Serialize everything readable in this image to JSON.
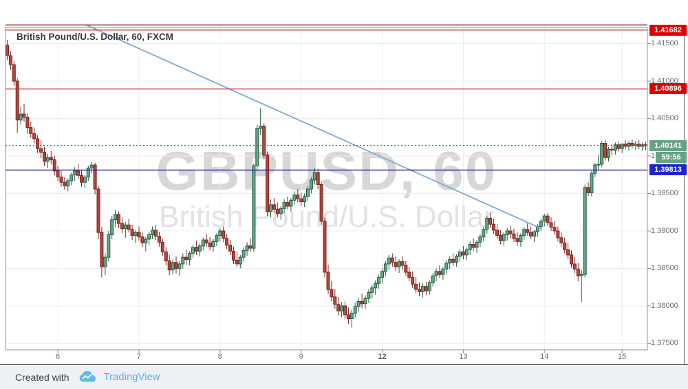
{
  "header": {
    "title": "British Pound/U.S. Dollar, 60, FXCM"
  },
  "watermark": {
    "line1": "GBPUSD, 60",
    "line2": "British Pound/U.S. Dollar"
  },
  "footer": {
    "created_with": "Created with",
    "brand": "TradingView"
  },
  "colors": {
    "up_fill": "#68a487",
    "up_border": "#1f5f42",
    "down_fill": "#b2473e",
    "down_border": "#7c241e",
    "grid": "#ececec",
    "frame": "#8f8f8f",
    "axis_edge": "#6b6b6b",
    "tick": "#8a8a8a",
    "trendline": "#7fa7d8",
    "upper_red_line": "#8c1f1f",
    "red_line": "#c03030",
    "red_badge": "#e00000",
    "current_line": "#3e7d63",
    "current_badge": "#66a284",
    "support_line": "#26268f",
    "support_badge": "#2023cc"
  },
  "chart_data": {
    "type": "candlestick",
    "title": "British Pound/U.S. Dollar",
    "symbol": "GBPUSD",
    "interval": "60",
    "exchange": "FXCM",
    "last_price": "1.40141",
    "countdown": "59:56",
    "y_axis": {
      "range_top": 1.41716,
      "range_bottom": 1.37413,
      "ticks": [
        {
          "label": "1.41500",
          "value": 1.415
        },
        {
          "label": "1.41000",
          "value": 1.41
        },
        {
          "label": "1.40500",
          "value": 1.405
        },
        {
          "label": "1.40000",
          "value": 1.4
        },
        {
          "label": "1.39500",
          "value": 1.395
        },
        {
          "label": "1.39000",
          "value": 1.39
        },
        {
          "label": "1.38500",
          "value": 1.385
        },
        {
          "label": "1.38000",
          "value": 1.38
        },
        {
          "label": "1.37500",
          "value": 1.375
        }
      ]
    },
    "x_axis": {
      "ticks": [
        {
          "label": "6",
          "index": 15,
          "bold": false
        },
        {
          "label": "7",
          "index": 39,
          "bold": false
        },
        {
          "label": "8",
          "index": 63,
          "bold": false
        },
        {
          "label": "9",
          "index": 87,
          "bold": false
        },
        {
          "label": "12",
          "index": 111,
          "bold": true
        },
        {
          "label": "13",
          "index": 135,
          "bold": false
        },
        {
          "label": "14",
          "index": 159,
          "bold": false
        },
        {
          "label": "15",
          "index": 182,
          "bold": false
        }
      ]
    },
    "levels": [
      {
        "price": 1.4175,
        "label": null,
        "style": "solid",
        "line_color": "#8c1f1f",
        "badge_color": null
      },
      {
        "price": 1.41682,
        "label": "1.41682",
        "style": "solid",
        "line_color": "#c03030",
        "badge_color": "#e00000"
      },
      {
        "price": 1.40896,
        "label": "1.40896",
        "style": "solid",
        "line_color": "#c03030",
        "badge_color": "#e00000"
      },
      {
        "price": 1.40141,
        "label": "1.40141",
        "style": "dotted",
        "line_color": "#3e7d63",
        "badge_color": "#66a284",
        "current": true
      },
      {
        "price": 1.39813,
        "label": "1.39813",
        "style": "solid",
        "line_color": "#26268f",
        "badge_color": "#2023cc"
      }
    ],
    "trendline": {
      "from_index": 23.4,
      "from_price": 1.4175,
      "to_index": 158.2,
      "to_price": 1.3903
    },
    "candles": [
      [
        1.4148,
        1.4155,
        1.4128,
        1.4134
      ],
      [
        1.4134,
        1.414,
        1.4115,
        1.4122
      ],
      [
        1.4122,
        1.4127,
        1.4094,
        1.41
      ],
      [
        1.41,
        1.4104,
        1.4031,
        1.4048
      ],
      [
        1.4048,
        1.4066,
        1.4042,
        1.4056
      ],
      [
        1.4056,
        1.407,
        1.4046,
        1.4052
      ],
      [
        1.4052,
        1.4057,
        1.403,
        1.4038
      ],
      [
        1.4038,
        1.4046,
        1.4024,
        1.403
      ],
      [
        1.403,
        1.4038,
        1.4017,
        1.4023
      ],
      [
        1.4023,
        1.4028,
        1.4004,
        1.401
      ],
      [
        1.401,
        1.4021,
        1.3997,
        1.4005
      ],
      [
        1.4005,
        1.4012,
        1.3987,
        1.3993
      ],
      [
        1.3993,
        1.4003,
        1.3984,
        1.3998
      ],
      [
        1.3998,
        1.4007,
        1.3989,
        1.3995
      ],
      [
        1.3995,
        1.4,
        1.3974,
        1.398
      ],
      [
        1.398,
        1.3987,
        1.3967,
        1.3972
      ],
      [
        1.3972,
        1.398,
        1.3959,
        1.3965
      ],
      [
        1.3965,
        1.3972,
        1.3955,
        1.396
      ],
      [
        1.396,
        1.397,
        1.3953,
        1.3967
      ],
      [
        1.3967,
        1.3978,
        1.3961,
        1.3975
      ],
      [
        1.3975,
        1.3985,
        1.3967,
        1.398
      ],
      [
        1.398,
        1.3989,
        1.3969,
        1.3974
      ],
      [
        1.3974,
        1.3981,
        1.3959,
        1.3965
      ],
      [
        1.3965,
        1.3975,
        1.3957,
        1.3972
      ],
      [
        1.3972,
        1.3987,
        1.3967,
        1.3984
      ],
      [
        1.3984,
        1.3992,
        1.3977,
        1.3988
      ],
      [
        1.3988,
        1.3991,
        1.3949,
        1.3956
      ],
      [
        1.3956,
        1.396,
        1.3889,
        1.3898
      ],
      [
        1.3898,
        1.3905,
        1.3838,
        1.3852
      ],
      [
        1.3852,
        1.387,
        1.3841,
        1.3865
      ],
      [
        1.3865,
        1.39,
        1.3859,
        1.3895
      ],
      [
        1.3895,
        1.392,
        1.3889,
        1.3915
      ],
      [
        1.3915,
        1.3928,
        1.3905,
        1.3922
      ],
      [
        1.3922,
        1.3926,
        1.3904,
        1.391
      ],
      [
        1.391,
        1.3918,
        1.3897,
        1.3903
      ],
      [
        1.3903,
        1.3912,
        1.3891,
        1.3908
      ],
      [
        1.3908,
        1.3916,
        1.3898,
        1.3902
      ],
      [
        1.3902,
        1.3908,
        1.3888,
        1.3894
      ],
      [
        1.3894,
        1.3901,
        1.3884,
        1.3898
      ],
      [
        1.3898,
        1.3906,
        1.3887,
        1.3892
      ],
      [
        1.3892,
        1.3898,
        1.3878,
        1.3884
      ],
      [
        1.3884,
        1.3892,
        1.3873,
        1.3889
      ],
      [
        1.3889,
        1.3899,
        1.3881,
        1.3895
      ],
      [
        1.3895,
        1.3906,
        1.3889,
        1.3901
      ],
      [
        1.3901,
        1.3908,
        1.3888,
        1.3893
      ],
      [
        1.3893,
        1.3899,
        1.3879,
        1.3885
      ],
      [
        1.3885,
        1.389,
        1.3867,
        1.3872
      ],
      [
        1.3872,
        1.3878,
        1.3854,
        1.386
      ],
      [
        1.386,
        1.3868,
        1.3841,
        1.3848
      ],
      [
        1.3848,
        1.3862,
        1.3842,
        1.3858
      ],
      [
        1.3858,
        1.3866,
        1.3843,
        1.385
      ],
      [
        1.385,
        1.386,
        1.384,
        1.3856
      ],
      [
        1.3856,
        1.387,
        1.385,
        1.3865
      ],
      [
        1.3865,
        1.3875,
        1.3855,
        1.3862
      ],
      [
        1.3862,
        1.3873,
        1.3854,
        1.387
      ],
      [
        1.387,
        1.3882,
        1.3864,
        1.3878
      ],
      [
        1.3878,
        1.3887,
        1.3868,
        1.3873
      ],
      [
        1.3873,
        1.3883,
        1.3866,
        1.388
      ],
      [
        1.388,
        1.3891,
        1.3874,
        1.3888
      ],
      [
        1.3888,
        1.3896,
        1.3879,
        1.3884
      ],
      [
        1.3884,
        1.3892,
        1.3874,
        1.3879
      ],
      [
        1.3879,
        1.3889,
        1.3872,
        1.3886
      ],
      [
        1.3886,
        1.3897,
        1.388,
        1.3894
      ],
      [
        1.3894,
        1.3904,
        1.3886,
        1.39
      ],
      [
        1.39,
        1.3906,
        1.3885,
        1.389
      ],
      [
        1.389,
        1.3896,
        1.3876,
        1.3881
      ],
      [
        1.3881,
        1.3888,
        1.3868,
        1.3873
      ],
      [
        1.3873,
        1.3879,
        1.3856,
        1.3861
      ],
      [
        1.3861,
        1.3872,
        1.3852,
        1.3856
      ],
      [
        1.3856,
        1.3868,
        1.385,
        1.3865
      ],
      [
        1.3865,
        1.3878,
        1.3859,
        1.3874
      ],
      [
        1.3874,
        1.3885,
        1.3867,
        1.388
      ],
      [
        1.388,
        1.389,
        1.3872,
        1.3877
      ],
      [
        1.3877,
        1.399,
        1.3872,
        1.3987
      ],
      [
        1.3987,
        1.4042,
        1.398,
        1.4037
      ],
      [
        1.4037,
        1.4064,
        1.4028,
        1.404
      ],
      [
        1.404,
        1.4044,
        1.3996,
        1.4001
      ],
      [
        1.4001,
        1.4006,
        1.392,
        1.3926
      ],
      [
        1.3926,
        1.3942,
        1.3918,
        1.3935
      ],
      [
        1.3935,
        1.3944,
        1.3924,
        1.3929
      ],
      [
        1.3929,
        1.3938,
        1.3918,
        1.3923
      ],
      [
        1.3923,
        1.3933,
        1.3915,
        1.393
      ],
      [
        1.393,
        1.3942,
        1.3924,
        1.3938
      ],
      [
        1.3938,
        1.3946,
        1.3929,
        1.3933
      ],
      [
        1.3933,
        1.3944,
        1.3926,
        1.3941
      ],
      [
        1.3941,
        1.3953,
        1.3935,
        1.3948
      ],
      [
        1.3948,
        1.3956,
        1.3938,
        1.3943
      ],
      [
        1.3943,
        1.3951,
        1.3933,
        1.3939
      ],
      [
        1.3939,
        1.395,
        1.3932,
        1.3946
      ],
      [
        1.3946,
        1.396,
        1.394,
        1.3956
      ],
      [
        1.3956,
        1.3972,
        1.395,
        1.3968
      ],
      [
        1.3968,
        1.3984,
        1.3962,
        1.3978
      ],
      [
        1.3978,
        1.3983,
        1.3956,
        1.3962
      ],
      [
        1.3962,
        1.3966,
        1.3908,
        1.3913
      ],
      [
        1.3913,
        1.3918,
        1.3838,
        1.3845
      ],
      [
        1.3845,
        1.3855,
        1.3816,
        1.3822
      ],
      [
        1.3822,
        1.3833,
        1.3806,
        1.3812
      ],
      [
        1.3812,
        1.3822,
        1.3796,
        1.3802
      ],
      [
        1.3802,
        1.3812,
        1.3787,
        1.3793
      ],
      [
        1.3793,
        1.3805,
        1.3785,
        1.38
      ],
      [
        1.38,
        1.3806,
        1.3782,
        1.3788
      ],
      [
        1.3788,
        1.3798,
        1.3776,
        1.3783
      ],
      [
        1.3783,
        1.3795,
        1.3771,
        1.379
      ],
      [
        1.379,
        1.3804,
        1.3784,
        1.3799
      ],
      [
        1.3799,
        1.3811,
        1.3792,
        1.3806
      ],
      [
        1.3806,
        1.3816,
        1.3797,
        1.3803
      ],
      [
        1.3803,
        1.3814,
        1.3796,
        1.381
      ],
      [
        1.381,
        1.3822,
        1.3804,
        1.3818
      ],
      [
        1.3818,
        1.3828,
        1.381,
        1.3824
      ],
      [
        1.3824,
        1.3834,
        1.3815,
        1.383
      ],
      [
        1.383,
        1.3842,
        1.3823,
        1.3838
      ],
      [
        1.3838,
        1.385,
        1.383,
        1.3846
      ],
      [
        1.3846,
        1.386,
        1.384,
        1.3856
      ],
      [
        1.3856,
        1.3868,
        1.3848,
        1.3864
      ],
      [
        1.3864,
        1.387,
        1.3852,
        1.3858
      ],
      [
        1.3858,
        1.3866,
        1.3846,
        1.3852
      ],
      [
        1.3852,
        1.3862,
        1.3844,
        1.3859
      ],
      [
        1.3859,
        1.3866,
        1.3848,
        1.3854
      ],
      [
        1.3854,
        1.386,
        1.384,
        1.3845
      ],
      [
        1.3845,
        1.3852,
        1.3833,
        1.3838
      ],
      [
        1.3838,
        1.3846,
        1.3824,
        1.3829
      ],
      [
        1.3829,
        1.3838,
        1.3817,
        1.3822
      ],
      [
        1.3822,
        1.3831,
        1.3813,
        1.3819
      ],
      [
        1.3819,
        1.383,
        1.3811,
        1.3826
      ],
      [
        1.3826,
        1.3832,
        1.3814,
        1.382
      ],
      [
        1.382,
        1.3834,
        1.3815,
        1.3831
      ],
      [
        1.3831,
        1.3844,
        1.3826,
        1.384
      ],
      [
        1.384,
        1.385,
        1.3833,
        1.3846
      ],
      [
        1.3846,
        1.3854,
        1.3837,
        1.3842
      ],
      [
        1.3842,
        1.3852,
        1.3835,
        1.3849
      ],
      [
        1.3849,
        1.3861,
        1.3843,
        1.3857
      ],
      [
        1.3857,
        1.3866,
        1.3849,
        1.3862
      ],
      [
        1.3862,
        1.387,
        1.3853,
        1.3858
      ],
      [
        1.3858,
        1.3869,
        1.3852,
        1.3866
      ],
      [
        1.3866,
        1.3876,
        1.3859,
        1.3872
      ],
      [
        1.3872,
        1.388,
        1.3862,
        1.3868
      ],
      [
        1.3868,
        1.3878,
        1.3861,
        1.3875
      ],
      [
        1.3875,
        1.3886,
        1.3868,
        1.3882
      ],
      [
        1.3882,
        1.389,
        1.3873,
        1.3878
      ],
      [
        1.3878,
        1.3888,
        1.3871,
        1.3885
      ],
      [
        1.3885,
        1.3896,
        1.3878,
        1.3892
      ],
      [
        1.3892,
        1.3906,
        1.3886,
        1.3902
      ],
      [
        1.3902,
        1.392,
        1.3896,
        1.3917
      ],
      [
        1.3917,
        1.3924,
        1.3904,
        1.3909
      ],
      [
        1.3909,
        1.3916,
        1.3896,
        1.3901
      ],
      [
        1.3901,
        1.3909,
        1.3889,
        1.3894
      ],
      [
        1.3894,
        1.3901,
        1.3882,
        1.3887
      ],
      [
        1.3887,
        1.3898,
        1.388,
        1.3895
      ],
      [
        1.3895,
        1.3904,
        1.3887,
        1.39
      ],
      [
        1.39,
        1.3907,
        1.389,
        1.3896
      ],
      [
        1.3896,
        1.3903,
        1.3885,
        1.389
      ],
      [
        1.389,
        1.3898,
        1.388,
        1.3886
      ],
      [
        1.3886,
        1.3897,
        1.3879,
        1.3894
      ],
      [
        1.3894,
        1.3905,
        1.3888,
        1.3902
      ],
      [
        1.3902,
        1.391,
        1.3894,
        1.3898
      ],
      [
        1.3898,
        1.3906,
        1.3889,
        1.3893
      ],
      [
        1.3893,
        1.3901,
        1.3885,
        1.3899
      ],
      [
        1.3899,
        1.3909,
        1.3892,
        1.3906
      ],
      [
        1.3906,
        1.3916,
        1.39,
        1.3913
      ],
      [
        1.3913,
        1.3923,
        1.3906,
        1.392
      ],
      [
        1.392,
        1.3924,
        1.3906,
        1.3911
      ],
      [
        1.3911,
        1.3918,
        1.39,
        1.3905
      ],
      [
        1.3905,
        1.3913,
        1.3895,
        1.39
      ],
      [
        1.39,
        1.3906,
        1.3886,
        1.3891
      ],
      [
        1.3891,
        1.3898,
        1.3879,
        1.3884
      ],
      [
        1.3884,
        1.3891,
        1.387,
        1.3875
      ],
      [
        1.3875,
        1.3884,
        1.3862,
        1.3868
      ],
      [
        1.3868,
        1.3874,
        1.3851,
        1.3856
      ],
      [
        1.3856,
        1.3865,
        1.3844,
        1.3849
      ],
      [
        1.3849,
        1.3857,
        1.3833,
        1.384
      ],
      [
        1.384,
        1.3848,
        1.3805,
        1.3842
      ],
      [
        1.3842,
        1.3962,
        1.3838,
        1.3958
      ],
      [
        1.3958,
        1.3965,
        1.3947,
        1.3951
      ],
      [
        1.3951,
        1.398,
        1.3946,
        1.3977
      ],
      [
        1.3977,
        1.3991,
        1.3972,
        1.3988
      ],
      [
        1.3988,
        1.4002,
        1.3982,
        1.3989
      ],
      [
        1.3989,
        1.402,
        1.3985,
        1.4017
      ],
      [
        1.4017,
        1.4022,
        1.3994,
        1.3998
      ],
      [
        1.3998,
        1.4012,
        1.3993,
        1.4009
      ],
      [
        1.4009,
        1.4016,
        1.4001,
        1.4008
      ],
      [
        1.4008,
        1.4018,
        1.4002,
        1.4015
      ],
      [
        1.4015,
        1.4019,
        1.4006,
        1.401
      ],
      [
        1.401,
        1.4017,
        1.4004,
        1.4016
      ],
      [
        1.4016,
        1.4021,
        1.4009,
        1.4013
      ],
      [
        1.4013,
        1.402,
        1.4007,
        1.4017
      ],
      [
        1.4017,
        1.4022,
        1.401,
        1.4014
      ],
      [
        1.4014,
        1.402,
        1.4008,
        1.4016
      ],
      [
        1.4016,
        1.4021,
        1.4009,
        1.4013
      ],
      [
        1.4013,
        1.4018,
        1.4007,
        1.4015
      ],
      [
        1.4015,
        1.4019,
        1.4008,
        1.40141
      ]
    ]
  }
}
